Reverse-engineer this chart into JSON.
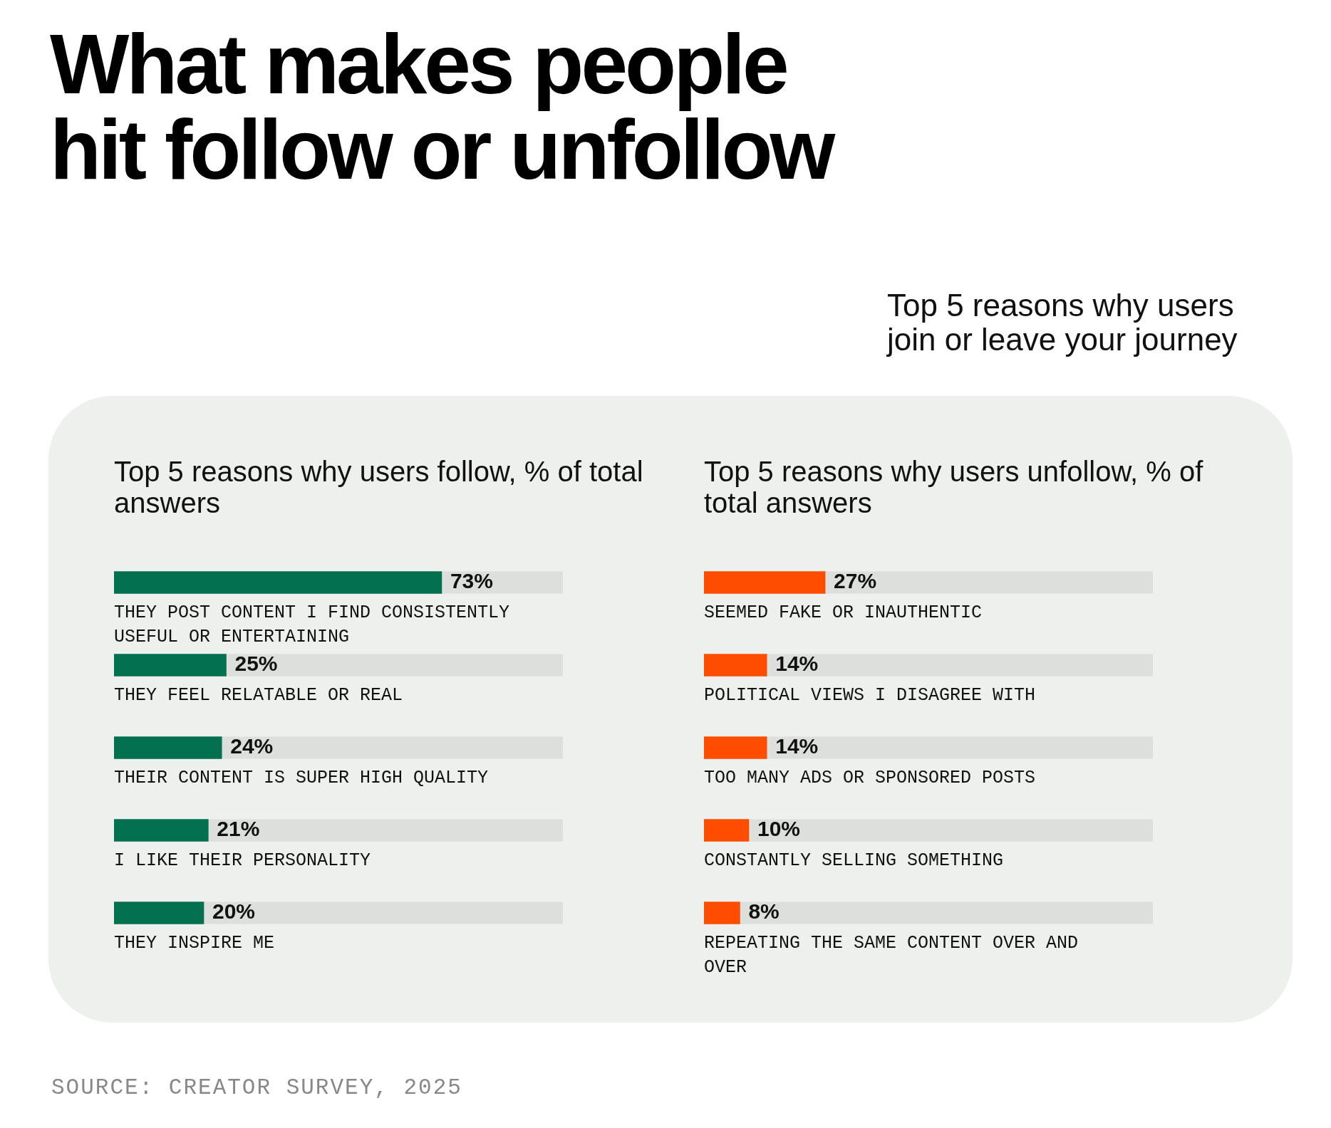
{
  "chart_data": [
    {
      "type": "other",
      "title": "What makes people hit follow or unfollow",
      "subtitle": "Top 5 reasons why users join or leave your journey",
      "annotations": [
        "SOURCE: CREATOR SURVEY, 2025"
      ]
    },
    {
      "type": "bar",
      "orientation": "horizontal",
      "title": "Top 5 reasons why users follow, % of total answers",
      "categories": [
        "THEY POST CONTENT I FIND CONSISTENTLY USEFUL OR ENTERTAINING",
        "THEY FEEL RELATABLE OR REAL",
        "THEIR CONTENT IS SUPER HIGH QUALITY",
        "I LIKE THEIR PERSONALITY",
        "THEY INSPIRE ME"
      ],
      "values": [
        73,
        25,
        24,
        21,
        20
      ],
      "color": "#03704f",
      "value_labels": [
        "73%",
        "25%",
        "24%",
        "21%",
        "20%"
      ],
      "xlim": [
        0,
        100
      ],
      "tick_labels": false,
      "legend": false
    },
    {
      "type": "bar",
      "orientation": "horizontal",
      "title": "Top 5 reasons why users unfollow, % of total answers",
      "categories": [
        "SEEMED FAKE OR INAUTHENTIC",
        "POLITICAL VIEWS I DISAGREE WITH",
        "TOO MANY ADS OR SPONSORED POSTS",
        "CONSTANTLY SELLING SOMETHING",
        "REPEATING THE SAME CONTENT OVER AND OVER"
      ],
      "values": [
        27,
        14,
        14,
        10,
        8
      ],
      "color": "#ff4d00",
      "value_labels": [
        "27%",
        "14%",
        "14%",
        "10%",
        "8%"
      ],
      "xlim": [
        0,
        100
      ],
      "tick_labels": false,
      "legend": false
    }
  ]
}
